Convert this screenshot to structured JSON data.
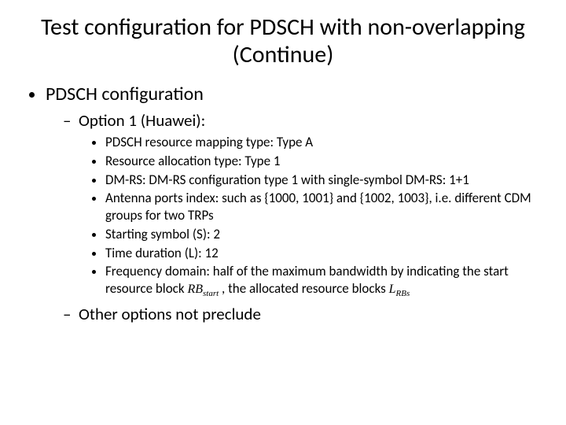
{
  "title": "Test configuration for PDSCH with non-overlapping (Continue)",
  "l1": {
    "item1": "PDSCH configuration"
  },
  "l2": {
    "opt1": "Option 1 (Huawei):",
    "other": "Other options not preclude"
  },
  "l3": {
    "a": "PDSCH resource mapping type: Type A",
    "b": "Resource allocation type: Type 1",
    "c": "DM-RS: DM-RS configuration type 1 with single-symbol DM-RS: 1+1",
    "d": "Antenna ports index: such as {1000, 1001} and {1002, 1003}, i.e. different CDM groups for two TRPs",
    "e": "Starting symbol (S): 2",
    "f": "Time duration (L): 12",
    "g_pre": "Frequency domain: half of the maximum bandwidth by indicating the start resource block ",
    "g_mid": " , the allocated resource blocks "
  },
  "math": {
    "rb_start_base": "RB",
    "rb_start_sub": "start",
    "lrbs_base": "L",
    "lrbs_sub": "RBs"
  },
  "colors": {
    "text": "#000000",
    "background": "#ffffff"
  },
  "fonts": {
    "body_family": "Calibri",
    "math_family": "Cambria Math"
  }
}
